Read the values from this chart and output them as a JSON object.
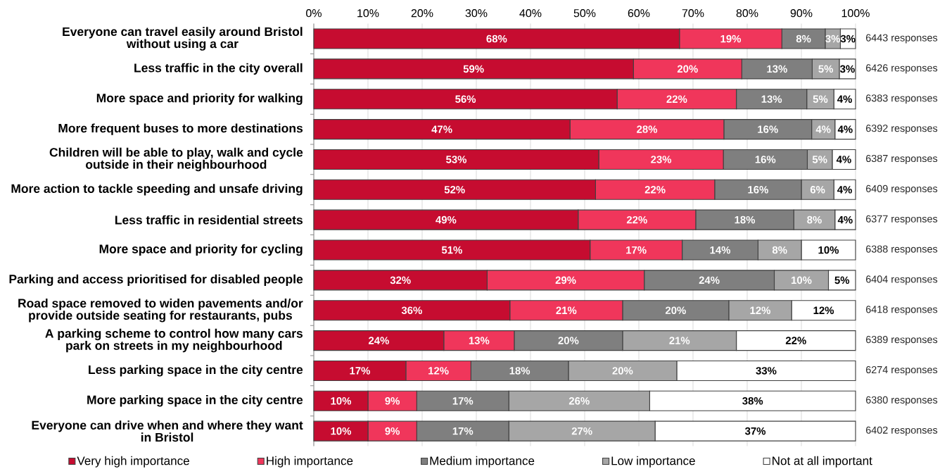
{
  "chart_data": {
    "type": "bar",
    "orientation": "horizontal",
    "stacked": true,
    "categories": [
      "Everyone can travel easily around Bristol without using a car",
      "Less traffic in the city overall",
      "More space and priority for walking",
      "More frequent buses to more destinations",
      "Children will be able to play, walk and cycle outside in their neighbourhood",
      "More action to tackle speeding and unsafe driving",
      "Less traffic in residential streets",
      "More space and priority for cycling",
      "Parking and access prioritised for disabled people",
      "Road space removed to widen pavements and/or provide outside seating for restaurants, pubs",
      "A parking scheme to control how many cars park on streets in my neighbourhood",
      "Less parking space in the city centre",
      "More parking space in the city centre",
      "Everyone can drive when and where they want in Bristol"
    ],
    "series": [
      {
        "name": "Very high importance",
        "color": "#c60c30",
        "values": [
          67.5,
          59,
          56,
          47.3,
          52.6,
          52,
          48.8,
          51,
          32,
          36.2,
          24,
          17,
          10,
          10
        ],
        "value_labels": [
          "68%",
          "59%",
          "56%",
          "47%",
          "53%",
          "52%",
          "49%",
          "51%",
          "32%",
          "36%",
          "24%",
          "17%",
          "10%",
          "10%"
        ]
      },
      {
        "name": "High importance",
        "color": "#f0365b",
        "values": [
          18.9,
          20,
          22,
          28.4,
          23.0,
          22,
          21.7,
          17,
          29,
          20.8,
          13,
          12,
          9,
          9
        ],
        "value_labels": [
          "19%",
          "20%",
          "22%",
          "28%",
          "23%",
          "22%",
          "22%",
          "17%",
          "29%",
          "21%",
          "13%",
          "12%",
          "9%",
          "9%"
        ]
      },
      {
        "name": "Medium importance",
        "color": "#7f7f7f",
        "values": [
          8.0,
          13,
          13,
          16.2,
          15.5,
          16,
          18.1,
          14,
          24,
          19.6,
          20,
          18,
          17,
          17
        ],
        "value_labels": [
          "8%",
          "13%",
          "13%",
          "16%",
          "16%",
          "16%",
          "18%",
          "14%",
          "24%",
          "20%",
          "20%",
          "18%",
          "17%",
          "17%"
        ]
      },
      {
        "name": "Low importance",
        "color": "#a6a6a6",
        "values": [
          2.8,
          5,
          5,
          4.3,
          4.6,
          6,
          7.6,
          8,
          10,
          11.6,
          21,
          20,
          26,
          27
        ],
        "value_labels": [
          "3%",
          "5%",
          "5%",
          "4%",
          "5%",
          "6%",
          "8%",
          "8%",
          "10%",
          "12%",
          "21%",
          "20%",
          "26%",
          "27%"
        ]
      },
      {
        "name": "Not at all important",
        "color": "#ffffff",
        "values": [
          2.8,
          3,
          4,
          3.8,
          4.3,
          4,
          3.8,
          10,
          5,
          11.8,
          22,
          33,
          38,
          37
        ],
        "value_labels": [
          "3%",
          "3%",
          "4%",
          "4%",
          "4%",
          "4%",
          "4%",
          "10%",
          "5%",
          "12%",
          "22%",
          "33%",
          "38%",
          "37%"
        ]
      }
    ],
    "xlim": [
      0,
      100
    ],
    "xticks": [
      {
        "value": 0,
        "label": "0%"
      },
      {
        "value": 10,
        "label": "10%"
      },
      {
        "value": 20,
        "label": "20%"
      },
      {
        "value": 30,
        "label": "30%"
      },
      {
        "value": 40,
        "label": "40%"
      },
      {
        "value": 50,
        "label": "50%"
      },
      {
        "value": 60,
        "label": "60%"
      },
      {
        "value": 70,
        "label": "70%"
      },
      {
        "value": 80,
        "label": "80%"
      },
      {
        "value": 90,
        "label": "90%"
      },
      {
        "value": 100,
        "label": "100%"
      }
    ],
    "grid": "x",
    "legend": "bottom",
    "annotations": [
      "6443 responses",
      "6426 responses",
      "6383 responses",
      "6392 responses",
      "6387 responses",
      "6409 responses",
      "6377 responses",
      "6388 responses",
      "6404 responses",
      "6418 responses",
      "6389 responses",
      "6274 responses",
      "6380 responses",
      "6402 responses"
    ]
  }
}
